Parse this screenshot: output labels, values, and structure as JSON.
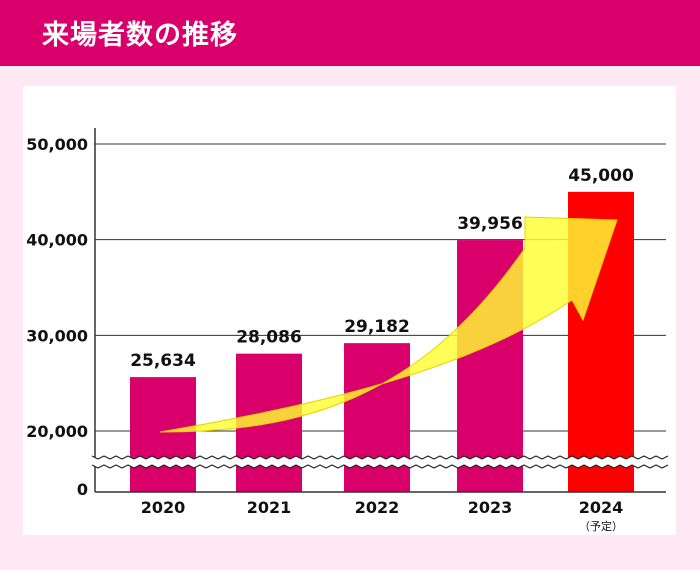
{
  "header": {
    "title": "来場者数の推移"
  },
  "chart_data": {
    "type": "bar",
    "categories": [
      "2020",
      "2021",
      "2022",
      "2023",
      "2024"
    ],
    "category_notes": [
      "",
      "",
      "",
      "",
      "（予定）"
    ],
    "values": [
      25634,
      28086,
      29182,
      39956,
      45000
    ],
    "value_labels": [
      "25,634",
      "28,086",
      "29,182",
      "39,956",
      "45,000"
    ],
    "yticks": [
      "0",
      "20,000",
      "30,000",
      "40,000",
      "50,000"
    ],
    "ylim": [
      0,
      50000
    ],
    "axis_break": true,
    "grid": true,
    "colors": {
      "actual": "#d9006c",
      "planned": "#ff0000",
      "arrow": "#ffff33",
      "header": "#d9006c"
    }
  }
}
